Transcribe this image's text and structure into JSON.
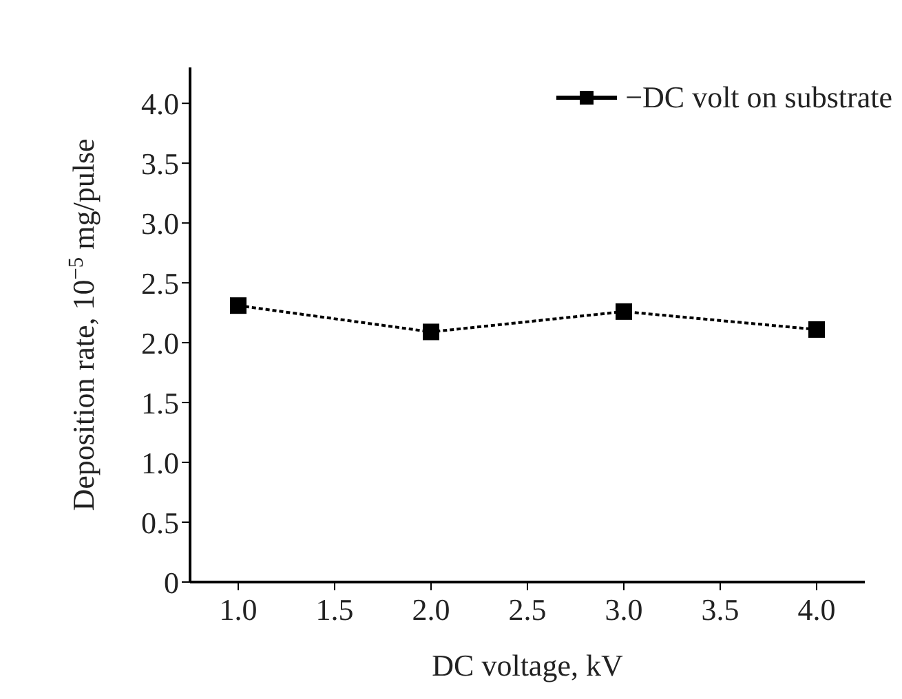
{
  "chart_data": {
    "type": "line",
    "xlabel": "DC voltage, kV",
    "ylabel": "Deposition rate, 10$^{−5}$ mg/pulse",
    "x": [
      1.0,
      2.0,
      3.0,
      4.0
    ],
    "series": [
      {
        "name": "−DC volt on substrate",
        "color": "#000000",
        "values": [
          2.31,
          2.09,
          2.26,
          2.11
        ]
      }
    ],
    "xlim": [
      0.75,
      4.25
    ],
    "xticks": [
      {
        "value": 1,
        "label": "1.0"
      },
      {
        "value": 1.5,
        "label": "1.5"
      },
      {
        "value": 2,
        "label": "2.0"
      },
      {
        "value": 2.5,
        "label": "2.5"
      },
      {
        "value": 3,
        "label": "3.0"
      },
      {
        "value": 3.5,
        "label": "3.5"
      },
      {
        "value": 4,
        "label": "4.0"
      }
    ],
    "ylim": [
      0,
      4.3
    ],
    "yticks": [
      0,
      {
        "value": 0.5,
        "label": "0.5"
      },
      {
        "value": 1,
        "label": "1.0"
      },
      {
        "value": 1.5,
        "label": "1.5"
      },
      {
        "value": 2,
        "label": "2.0"
      },
      {
        "value": 2.5,
        "label": "2.5"
      },
      {
        "value": 3,
        "label": "3.0"
      },
      {
        "value": 3.5,
        "label": "3.5"
      },
      {
        "value": 4,
        "label": "4.0"
      }
    ],
    "grid": false,
    "legend": "top right",
    "marker": "square",
    "line_style": "dashed"
  }
}
